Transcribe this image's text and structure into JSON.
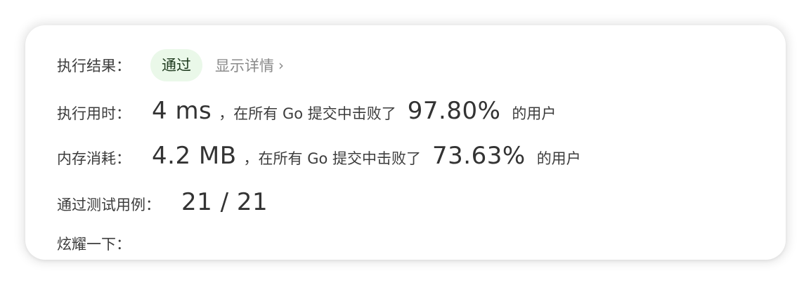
{
  "result": {
    "label": "执行结果：",
    "status": "通过",
    "details_link": "显示详情",
    "chevron": "›"
  },
  "runtime": {
    "label": "执行用时：",
    "value": "4 ms",
    "text_before": "，在所有 Go 提交中击败了",
    "percent": "97.80%",
    "text_after": "的用户"
  },
  "memory": {
    "label": "内存消耗：",
    "value": "4.2 MB",
    "text_before": "，在所有 Go 提交中击败了",
    "percent": "73.63%",
    "text_after": "的用户"
  },
  "testcases": {
    "label": "通过测试用例：",
    "value": "21 / 21"
  },
  "share": {
    "label": "炫耀一下："
  },
  "colors": {
    "badge_bg": "#eaf8e9",
    "link": "#8a8a8a"
  }
}
